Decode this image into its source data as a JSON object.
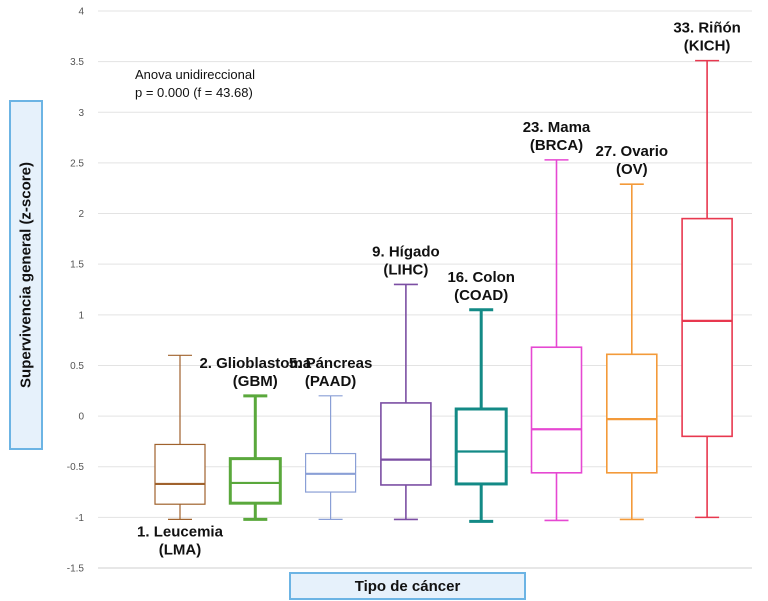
{
  "chart_data": {
    "type": "boxplot",
    "ylabel": "Supervivencia general (z-score)",
    "xlabel": "Tipo de cáncer",
    "ylim": [
      -1.5,
      4
    ],
    "yticks": [
      "4",
      "3.5",
      "3",
      "2.5",
      "2",
      "1.5",
      "1",
      "0.5",
      "0",
      "-0.5",
      "-1",
      "-1.5"
    ],
    "grid": true,
    "annotation": [
      "Anova unidireccional",
      "p = 0.000 (f = 43.68)"
    ],
    "series": [
      {
        "name": "1. Leucemia (LMA)",
        "label": [
          "1.  Leucemia",
          "(LMA)"
        ],
        "label_position": "below",
        "color": "#a0622d",
        "min": -1.02,
        "q1": -0.87,
        "median": -0.67,
        "q3": -0.28,
        "max": 0.6
      },
      {
        "name": "2. Glioblastoma (GBM)",
        "label": [
          "2. Glioblastoma",
          "(GBM)"
        ],
        "label_position": "above",
        "color": "#5aa83c",
        "min": -1.02,
        "q1": -0.86,
        "median": -0.66,
        "q3": -0.42,
        "max": 0.2
      },
      {
        "name": "5. Páncreas (PAAD)",
        "label": [
          "5. Páncreas",
          "(PAAD)"
        ],
        "label_position": "above",
        "color": "#8a9fd6",
        "min": -1.02,
        "q1": -0.75,
        "median": -0.57,
        "q3": -0.37,
        "max": 0.2
      },
      {
        "name": "9. Hígado (LIHC)",
        "label": [
          "9. Hígado",
          "(LIHC)"
        ],
        "label_position": "above",
        "color": "#7b4ea3",
        "min": -1.02,
        "q1": -0.68,
        "median": -0.43,
        "q3": 0.13,
        "max": 1.3
      },
      {
        "name": "16. Colon (COAD)",
        "label": [
          "16. Colon",
          "(COAD)"
        ],
        "label_position": "above",
        "color": "#138a86",
        "min": -1.04,
        "q1": -0.67,
        "median": -0.35,
        "q3": 0.07,
        "max": 1.05
      },
      {
        "name": "23. Mama (BRCA)",
        "label": [
          "23. Mama",
          "(BRCA)"
        ],
        "label_position": "above",
        "color": "#e648d2",
        "min": -1.03,
        "q1": -0.56,
        "median": -0.13,
        "q3": 0.68,
        "max": 2.53
      },
      {
        "name": "27. Ovario (OV)",
        "label": [
          "27. Ovario",
          "(OV)"
        ],
        "label_position": "above",
        "color": "#f39a3a",
        "min": -1.02,
        "q1": -0.56,
        "median": -0.03,
        "q3": 0.61,
        "max": 2.29
      },
      {
        "name": "33. Riñón (KICH)",
        "label": [
          "33. Riñón",
          "(KICH)"
        ],
        "label_position": "above",
        "color": "#e8384f",
        "min": -1.0,
        "q1": -0.2,
        "median": 0.94,
        "q3": 1.95,
        "max": 3.51
      }
    ]
  }
}
